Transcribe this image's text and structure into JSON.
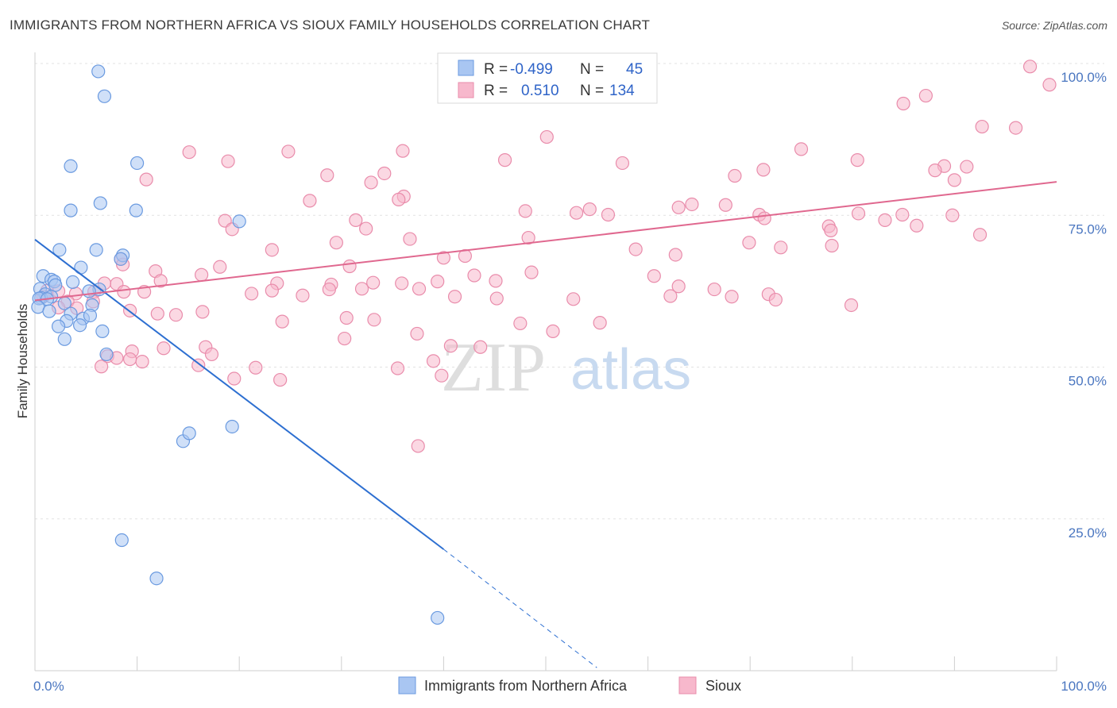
{
  "title": "IMMIGRANTS FROM NORTHERN AFRICA VS SIOUX FAMILY HOUSEHOLDS CORRELATION CHART",
  "source": "Source: ZipAtlas.com",
  "watermark": {
    "zip": "ZIP",
    "atlas": "atlas"
  },
  "colors": {
    "blue_fill": "#a9c6f2",
    "blue_stroke": "#6a9ae0",
    "blue_line": "#2d6fd1",
    "pink_fill": "#f7b8cc",
    "pink_stroke": "#e98cab",
    "pink_line": "#e0688f",
    "grid": "#e2e2e2",
    "axis_text": "#4a76c0"
  },
  "legend": {
    "rows": [
      {
        "r_label": "R =",
        "r_value": "-0.499",
        "n_label": "N =",
        "n_value": "45"
      },
      {
        "r_label": "R =",
        "r_value": "0.510",
        "n_label": "N =",
        "n_value": "134"
      }
    ]
  },
  "chart_data": {
    "type": "scatter",
    "title": "IMMIGRANTS FROM NORTHERN AFRICA VS SIOUX FAMILY HOUSEHOLDS CORRELATION CHART",
    "xlabel": "",
    "ylabel": "Family Households",
    "xlim": [
      0,
      100
    ],
    "ylim": [
      0,
      100
    ],
    "x_ticks": [
      "0.0%",
      "100.0%"
    ],
    "y_ticks": [
      {
        "value": 25,
        "label": "25.0%"
      },
      {
        "value": 50,
        "label": "50.0%"
      },
      {
        "value": 75,
        "label": "75.0%"
      },
      {
        "value": 100,
        "label": "100.0%"
      }
    ],
    "grid": true,
    "legend_position": "top-center",
    "series": [
      {
        "name": "Immigrants from Northern Africa",
        "color": "#a9c6f2",
        "trend": {
          "x0": 0,
          "y0": 71.0,
          "x1": 40,
          "y1": 20.0,
          "dash_to_x": 55,
          "dash_to_y": 0.5
        },
        "points": [
          [
            6.2,
            98.7
          ],
          [
            6.8,
            94.6
          ],
          [
            3.5,
            83.1
          ],
          [
            10.0,
            83.6
          ],
          [
            6.4,
            77.0
          ],
          [
            3.5,
            75.8
          ],
          [
            9.9,
            75.8
          ],
          [
            20.0,
            74.0
          ],
          [
            2.4,
            69.3
          ],
          [
            6.0,
            69.3
          ],
          [
            8.6,
            68.4
          ],
          [
            8.4,
            67.8
          ],
          [
            4.5,
            66.4
          ],
          [
            0.8,
            65.0
          ],
          [
            1.6,
            64.4
          ],
          [
            1.9,
            64.1
          ],
          [
            3.7,
            64.0
          ],
          [
            2.0,
            63.5
          ],
          [
            0.5,
            62.9
          ],
          [
            6.3,
            62.8
          ],
          [
            5.3,
            62.5
          ],
          [
            1.0,
            62.0
          ],
          [
            0.6,
            61.4
          ],
          [
            1.6,
            61.6
          ],
          [
            0.4,
            61.3
          ],
          [
            1.2,
            61.2
          ],
          [
            2.9,
            60.5
          ],
          [
            5.6,
            60.2
          ],
          [
            3.5,
            58.8
          ],
          [
            4.7,
            58.0
          ],
          [
            5.4,
            58.5
          ],
          [
            3.1,
            57.6
          ],
          [
            4.4,
            56.9
          ],
          [
            2.3,
            56.7
          ],
          [
            6.6,
            55.9
          ],
          [
            2.9,
            54.6
          ],
          [
            7.0,
            52.1
          ],
          [
            14.5,
            37.8
          ],
          [
            15.1,
            39.1
          ],
          [
            19.3,
            40.2
          ],
          [
            8.5,
            21.5
          ],
          [
            11.9,
            15.2
          ],
          [
            39.4,
            8.7
          ],
          [
            0.3,
            59.9
          ],
          [
            1.4,
            59.2
          ]
        ]
      },
      {
        "name": "Sioux",
        "color": "#f7b8cc",
        "trend": {
          "x0": 0,
          "y0": 61.0,
          "x1": 100,
          "y1": 80.5
        },
        "points": [
          [
            97.4,
            99.5
          ],
          [
            99.3,
            96.5
          ],
          [
            87.2,
            94.7
          ],
          [
            85.0,
            93.4
          ],
          [
            92.7,
            89.6
          ],
          [
            96.0,
            89.4
          ],
          [
            50.1,
            87.9
          ],
          [
            36.0,
            85.6
          ],
          [
            24.8,
            85.5
          ],
          [
            15.1,
            85.4
          ],
          [
            18.9,
            83.9
          ],
          [
            46.0,
            84.1
          ],
          [
            75.0,
            85.9
          ],
          [
            80.5,
            84.1
          ],
          [
            89.0,
            83.1
          ],
          [
            91.2,
            83.0
          ],
          [
            28.6,
            81.6
          ],
          [
            34.2,
            81.9
          ],
          [
            57.5,
            83.6
          ],
          [
            68.5,
            81.5
          ],
          [
            71.3,
            82.5
          ],
          [
            88.1,
            82.4
          ],
          [
            90.0,
            80.8
          ],
          [
            32.9,
            80.4
          ],
          [
            36.1,
            78.1
          ],
          [
            26.9,
            77.4
          ],
          [
            10.9,
            80.9
          ],
          [
            35.6,
            77.6
          ],
          [
            64.3,
            76.8
          ],
          [
            54.3,
            76.0
          ],
          [
            67.6,
            76.7
          ],
          [
            48.0,
            75.7
          ],
          [
            53.0,
            75.4
          ],
          [
            56.1,
            75.1
          ],
          [
            63.0,
            76.3
          ],
          [
            70.9,
            75.1
          ],
          [
            71.4,
            74.5
          ],
          [
            80.6,
            75.3
          ],
          [
            84.9,
            75.1
          ],
          [
            89.8,
            75.0
          ],
          [
            31.4,
            74.2
          ],
          [
            18.6,
            74.1
          ],
          [
            32.4,
            72.8
          ],
          [
            19.3,
            72.7
          ],
          [
            86.3,
            73.3
          ],
          [
            77.7,
            73.2
          ],
          [
            77.9,
            72.5
          ],
          [
            83.2,
            74.2
          ],
          [
            92.5,
            71.8
          ],
          [
            48.3,
            71.3
          ],
          [
            36.7,
            71.1
          ],
          [
            29.5,
            70.5
          ],
          [
            78.0,
            70.0
          ],
          [
            73.0,
            69.7
          ],
          [
            23.2,
            69.3
          ],
          [
            40.0,
            68.0
          ],
          [
            42.1,
            68.3
          ],
          [
            62.7,
            68.5
          ],
          [
            69.9,
            70.5
          ],
          [
            58.8,
            69.4
          ],
          [
            8.4,
            67.8
          ],
          [
            8.6,
            66.9
          ],
          [
            30.8,
            66.6
          ],
          [
            18.1,
            66.5
          ],
          [
            11.8,
            65.8
          ],
          [
            16.3,
            65.2
          ],
          [
            43.0,
            65.1
          ],
          [
            48.6,
            65.6
          ],
          [
            60.6,
            65.0
          ],
          [
            63.0,
            63.3
          ],
          [
            66.5,
            62.8
          ],
          [
            45.1,
            64.2
          ],
          [
            39.4,
            64.1
          ],
          [
            35.9,
            63.8
          ],
          [
            33.1,
            63.9
          ],
          [
            29.0,
            63.6
          ],
          [
            23.7,
            63.8
          ],
          [
            8.0,
            63.7
          ],
          [
            12.3,
            64.2
          ],
          [
            6.8,
            63.8
          ],
          [
            5.8,
            62.4
          ],
          [
            4.0,
            62.1
          ],
          [
            1.2,
            62.6
          ],
          [
            2.3,
            62.5
          ],
          [
            8.7,
            62.4
          ],
          [
            10.7,
            62.4
          ],
          [
            26.2,
            61.8
          ],
          [
            23.2,
            62.6
          ],
          [
            21.2,
            62.1
          ],
          [
            28.8,
            62.8
          ],
          [
            32.0,
            62.9
          ],
          [
            37.6,
            62.9
          ],
          [
            41.1,
            61.6
          ],
          [
            45.2,
            61.3
          ],
          [
            52.7,
            61.2
          ],
          [
            62.2,
            61.7
          ],
          [
            68.2,
            61.6
          ],
          [
            71.8,
            62.0
          ],
          [
            72.5,
            61.1
          ],
          [
            79.9,
            60.2
          ],
          [
            0.8,
            61.6
          ],
          [
            3.2,
            60.8
          ],
          [
            5.7,
            60.8
          ],
          [
            2.3,
            59.8
          ],
          [
            4.1,
            59.7
          ],
          [
            9.3,
            59.3
          ],
          [
            16.4,
            59.1
          ],
          [
            12.0,
            58.8
          ],
          [
            13.8,
            58.6
          ],
          [
            30.5,
            58.1
          ],
          [
            33.2,
            57.8
          ],
          [
            24.2,
            57.5
          ],
          [
            47.5,
            57.2
          ],
          [
            55.3,
            57.3
          ],
          [
            50.7,
            55.9
          ],
          [
            37.4,
            55.5
          ],
          [
            30.3,
            54.7
          ],
          [
            40.7,
            53.5
          ],
          [
            43.6,
            53.3
          ],
          [
            9.5,
            52.6
          ],
          [
            12.6,
            53.1
          ],
          [
            16.7,
            53.3
          ],
          [
            17.3,
            52.1
          ],
          [
            7.1,
            51.8
          ],
          [
            8.0,
            51.5
          ],
          [
            39.0,
            51.0
          ],
          [
            10.5,
            50.9
          ],
          [
            9.3,
            51.3
          ],
          [
            16.0,
            50.3
          ],
          [
            6.5,
            50.1
          ],
          [
            21.6,
            49.9
          ],
          [
            35.5,
            49.8
          ],
          [
            39.8,
            48.6
          ],
          [
            19.5,
            48.1
          ],
          [
            24.0,
            47.9
          ],
          [
            37.5,
            37.0
          ]
        ]
      }
    ]
  },
  "bottom_legend": {
    "items": [
      "Immigrants from Northern Africa",
      "Sioux"
    ]
  }
}
